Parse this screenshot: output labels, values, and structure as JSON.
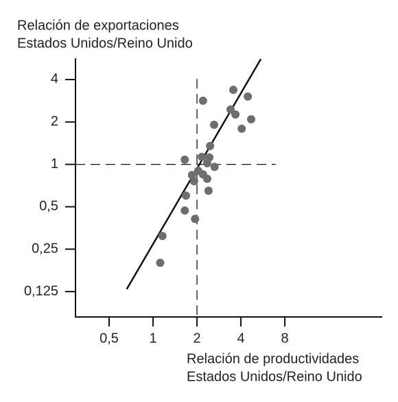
{
  "chart_data": {
    "type": "scatter",
    "ylabel": [
      "Relación de exportaciones",
      "Estados Unidos/Reino Unido"
    ],
    "xlabel": [
      "Relación de productividades",
      "Estados Unidos/Reino Unido"
    ],
    "x": [
      2.2,
      3.55,
      4.46,
      3.4,
      3.67,
      4.7,
      4.05,
      2.62,
      2.46,
      1.65,
      2.16,
      2.43,
      2.35,
      2.64,
      2.04,
      2.2,
      1.85,
      2.35,
      1.91,
      2.4,
      1.68,
      1.65,
      1.94,
      1.16,
      1.12
    ],
    "values": [
      2.83,
      3.38,
      3.03,
      2.45,
      2.26,
      2.09,
      1.79,
      1.91,
      1.35,
      1.08,
      1.13,
      1.12,
      1.02,
      0.96,
      0.9,
      0.85,
      0.84,
      0.79,
      0.76,
      0.65,
      0.6,
      0.47,
      0.41,
      0.31,
      0.2
    ],
    "color": "#6e6e6e",
    "xscale": "log",
    "yscale": "log",
    "xlim": [
      0.294,
      37.2
    ],
    "ylim": [
      0.0826,
      5.66
    ],
    "xticks": [
      {
        "value": 0.5,
        "label": "0,5"
      },
      1,
      2,
      4,
      8
    ],
    "yticks": [
      {
        "value": 0.125,
        "label": "0,125"
      },
      {
        "value": 0.25,
        "label": "0,25"
      },
      {
        "value": 0.5,
        "label": "0,5"
      },
      1,
      2,
      4
    ],
    "reference_x": 2,
    "reference_y": 1,
    "fit_line": {
      "x": [
        0.66,
        5.48
      ],
      "values": [
        0.13,
        5.6
      ]
    }
  }
}
